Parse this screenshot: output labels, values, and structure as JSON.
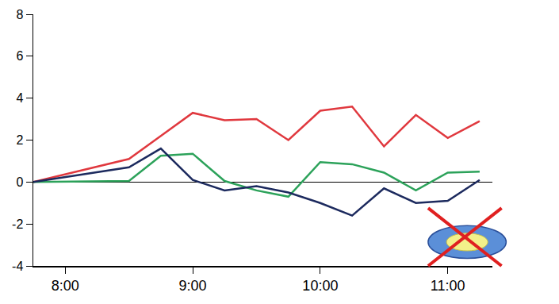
{
  "chart_data": {
    "type": "line",
    "x": [
      7.75,
      8.5,
      8.75,
      9,
      9.25,
      9.5,
      9.75,
      10,
      10.25,
      10.5,
      10.75,
      11,
      11.25
    ],
    "series": [
      {
        "color": "#e0383e",
        "values": [
          0,
          1.1,
          2.2,
          3.3,
          2.95,
          3.0,
          2.0,
          3.4,
          3.6,
          1.7,
          3.2,
          2.1,
          2.9
        ]
      },
      {
        "color": "#2ca25a",
        "values": [
          0,
          0.05,
          1.25,
          1.35,
          0.05,
          -0.4,
          -0.7,
          0.95,
          0.85,
          0.45,
          -0.4,
          0.45,
          0.5
        ]
      },
      {
        "color": "#1c2a5e",
        "values": [
          0,
          0.7,
          1.6,
          0.1,
          -0.4,
          -0.2,
          -0.5,
          -1.0,
          -1.6,
          -0.3,
          -1.0,
          -0.9,
          0.1
        ]
      }
    ],
    "xlim": [
      7.75,
      11.35
    ],
    "xticks": [
      {
        "value": 8,
        "label": "8:00"
      },
      {
        "value": 9,
        "label": "9:00"
      },
      {
        "value": 10,
        "label": "10:00"
      },
      {
        "value": 11,
        "label": "11:00"
      }
    ],
    "ylim": [
      -4,
      8
    ],
    "yticks": [
      -4,
      -2,
      0,
      2,
      4,
      6,
      8
    ],
    "grid": false
  }
}
